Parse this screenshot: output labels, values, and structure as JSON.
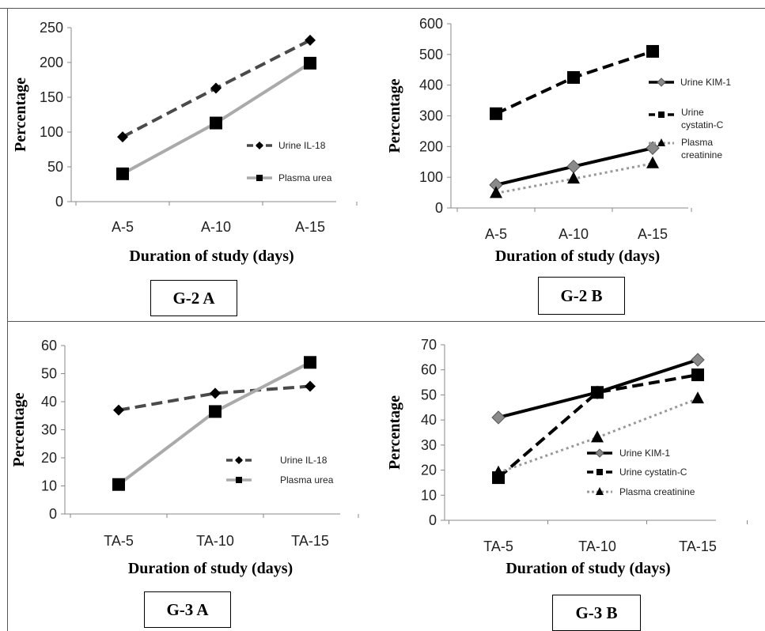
{
  "chart_data": [
    {
      "id": "g2a",
      "type": "line",
      "caption": "G-2 A",
      "xlabel": "Duration of study (days)",
      "ylabel": "Percentage",
      "categories": [
        "A-5",
        "A-10",
        "A-15"
      ],
      "ylim": [
        0,
        250
      ],
      "yticks": [
        0,
        50,
        100,
        150,
        200,
        250
      ],
      "grid": false,
      "legend_position": "right",
      "series": [
        {
          "name": "Urine IL-18",
          "values": [
            93,
            163,
            232
          ],
          "color": "#4a4a4a",
          "dash": "dashed",
          "marker": "diamond"
        },
        {
          "name": "Plasma urea",
          "values": [
            40,
            113,
            199
          ],
          "color": "#aaaaaa",
          "dash": "solid",
          "marker": "square"
        }
      ]
    },
    {
      "id": "g2b",
      "type": "line",
      "caption": "G-2 B",
      "xlabel": "Duration of study (days)",
      "ylabel": "Percentage",
      "categories": [
        "A-5",
        "A-10",
        "A-15"
      ],
      "ylim": [
        0,
        600
      ],
      "yticks": [
        0,
        100,
        200,
        300,
        400,
        500,
        600
      ],
      "grid": false,
      "legend_position": "right",
      "series": [
        {
          "name": "Urine KIM-1",
          "values": [
            75,
            135,
            195
          ],
          "color": "#000000",
          "dash": "solid",
          "marker": "diamond-gray"
        },
        {
          "name": "Urine cystatin-C",
          "values": [
            307,
            425,
            510
          ],
          "color": "#000000",
          "dash": "dashed",
          "marker": "square"
        },
        {
          "name": "Plasma creatinine",
          "values": [
            48,
            95,
            145
          ],
          "color": "#999999",
          "dash": "dotted",
          "marker": "triangle"
        }
      ]
    },
    {
      "id": "g3a",
      "type": "line",
      "caption": "G-3 A",
      "xlabel": "Duration of study (days)",
      "ylabel": "Percentage",
      "categories": [
        "TA-5",
        "TA-10",
        "TA-15"
      ],
      "ylim": [
        0,
        60
      ],
      "yticks": [
        0,
        10,
        20,
        30,
        40,
        50,
        60
      ],
      "grid": false,
      "legend_position": "right",
      "series": [
        {
          "name": "Urine IL-18",
          "values": [
            37,
            43,
            45.5
          ],
          "color": "#4a4a4a",
          "dash": "dashed",
          "marker": "diamond"
        },
        {
          "name": "Plasma urea",
          "values": [
            10.5,
            36.5,
            54
          ],
          "color": "#aaaaaa",
          "dash": "solid",
          "marker": "square"
        }
      ]
    },
    {
      "id": "g3b",
      "type": "line",
      "caption": "G-3 B",
      "xlabel": "Duration of study (days)",
      "ylabel": "Percentage",
      "categories": [
        "TA-5",
        "TA-10",
        "TA-15"
      ],
      "ylim": [
        0,
        70
      ],
      "yticks": [
        0,
        10,
        20,
        30,
        40,
        50,
        60,
        70
      ],
      "grid": false,
      "legend_position": "right",
      "series": [
        {
          "name": "Urine KIM-1",
          "values": [
            41,
            51,
            64
          ],
          "color": "#000000",
          "dash": "solid",
          "marker": "diamond-gray"
        },
        {
          "name": "Urine cystatin-C",
          "values": [
            17,
            51,
            58
          ],
          "color": "#000000",
          "dash": "dashed",
          "marker": "square"
        },
        {
          "name": "Plasma creatinine",
          "values": [
            19,
            33,
            48.5
          ],
          "color": "#999999",
          "dash": "dotted",
          "marker": "triangle"
        }
      ]
    }
  ]
}
